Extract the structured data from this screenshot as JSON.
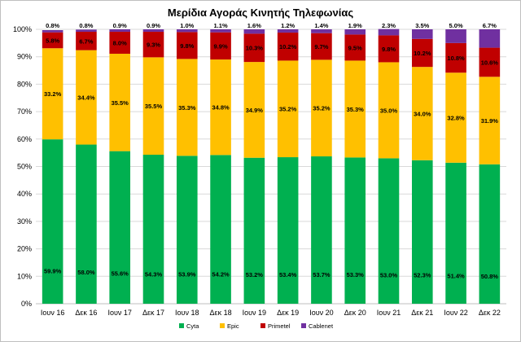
{
  "chart_data": {
    "type": "bar",
    "stacked": true,
    "title": "Μερίδια Αγοράς Κινητής Τηλεφωνίας",
    "categories": [
      "Ιουν 16",
      "Δεκ 16",
      "Ιουν 17",
      "Δεκ 17",
      "Ιουν 18",
      "Δεκ 18",
      "Ιουν 19",
      "Δεκ 19",
      "Ιουν 20",
      "Δεκ 20",
      "Ιουν 21",
      "Δεκ 21",
      "Ιουν 22",
      "Δεκ 22"
    ],
    "series": [
      {
        "name": "Cyta",
        "color": "#00b050",
        "values": [
          59.9,
          58.0,
          55.6,
          54.3,
          53.9,
          54.2,
          53.2,
          53.4,
          53.7,
          53.3,
          53.0,
          52.3,
          51.4,
          50.8
        ]
      },
      {
        "name": "Epic",
        "color": "#ffc000",
        "values": [
          33.2,
          34.4,
          35.5,
          35.5,
          35.3,
          34.8,
          34.9,
          35.2,
          35.2,
          35.3,
          35.0,
          34.0,
          32.8,
          31.9
        ]
      },
      {
        "name": "Primetel",
        "color": "#c00000",
        "values": [
          5.8,
          6.7,
          8.0,
          9.3,
          9.8,
          9.9,
          10.3,
          10.2,
          9.7,
          9.5,
          9.8,
          10.2,
          10.8,
          10.6
        ]
      },
      {
        "name": "Cablenet",
        "color": "#7030a0",
        "values": [
          0.8,
          0.8,
          0.9,
          0.9,
          1.0,
          1.1,
          1.6,
          1.2,
          1.4,
          1.9,
          2.3,
          3.5,
          5.0,
          6.7
        ]
      }
    ],
    "data_labels": {
      "Cyta": [
        "59.9%",
        "58.0%",
        "55.6%",
        "54.3%",
        "53.9%",
        "54.2%",
        "53.2%",
        "53.4%",
        "53.7%",
        "53.3%",
        "53.0%",
        "52.3%",
        "51.4%",
        "50.8%"
      ],
      "Epic": [
        "33.2%",
        "34.4%",
        "35.5%",
        "35.5%",
        "35.3%",
        "34.8%",
        "34.9%",
        "35.2%",
        "35.2%",
        "35.3%",
        "35.0%",
        "34.0%",
        "32.8%",
        "31.9%"
      ],
      "Primetel": [
        "5.8%",
        "6.7%",
        "8.0%",
        "9.3%",
        "9.8%",
        "9.9%",
        "10.3%",
        "10.2%",
        "9.7%",
        "9.5%",
        "9.8%",
        "10.2%",
        "10.8%",
        "10.6%"
      ],
      "Cablenet": [
        "0.8%",
        "0.8%",
        "0.9%",
        "0.9%",
        "1.0%",
        "1.1%",
        "1.6%",
        "1.2%",
        "1.4%",
        "1.9%",
        "2.3%",
        "3.5%",
        "5.0%",
        "6.7%"
      ]
    },
    "yticks": [
      "0%",
      "10%",
      "20%",
      "30%",
      "40%",
      "50%",
      "60%",
      "70%",
      "80%",
      "90%",
      "100%"
    ],
    "ylim": [
      0,
      100
    ],
    "grid": true,
    "legend_position": "bottom"
  }
}
